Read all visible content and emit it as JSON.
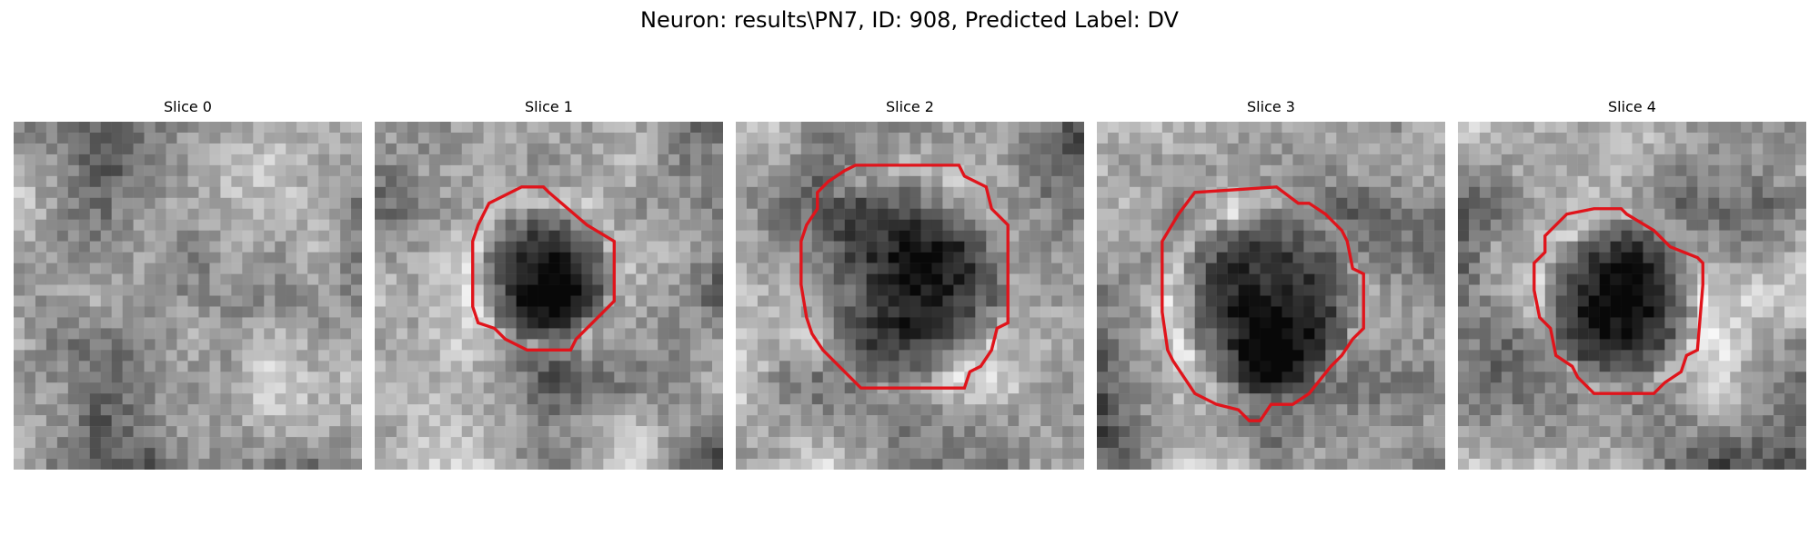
{
  "figure": {
    "title": "Neuron: results\\PN7, ID: 908, Predicted Label: DV"
  },
  "panels": [
    {
      "title": "Slice 0"
    },
    {
      "title": "Slice 1"
    },
    {
      "title": "Slice 2"
    },
    {
      "title": "Slice 3"
    },
    {
      "title": "Slice 4"
    }
  ],
  "colors": {
    "contour": "#e0141b",
    "background": "#ffffff"
  }
}
